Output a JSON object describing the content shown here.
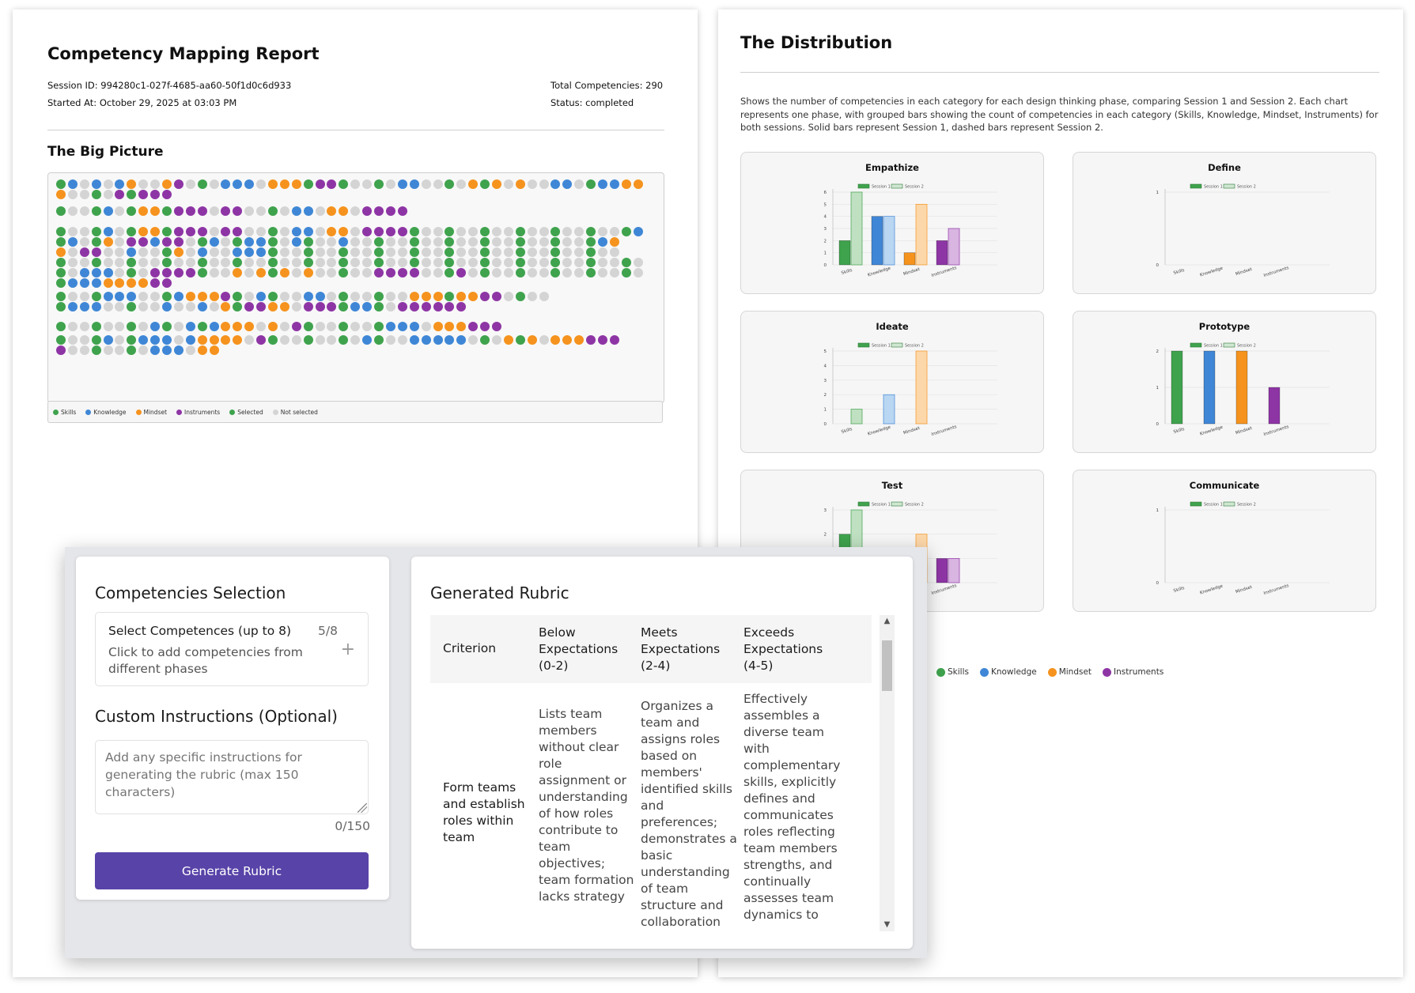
{
  "report": {
    "title": "Competency Mapping Report",
    "session_id": "Session ID: 994280c1-027f-4685-aa60-50f1d0c6d933",
    "started_at": "Started At: October 29, 2025 at 03:03 PM",
    "total": "Total Competencies: 290",
    "status": "Status: completed",
    "big_picture_title": "The Big Picture",
    "legend": [
      "Skills",
      "Knowledge",
      "Mindset",
      "Instruments",
      "Selected",
      "Not selected"
    ]
  },
  "colors": {
    "skills": "#3fa34d",
    "knowledge": "#3f87d6",
    "mindset": "#f5931e",
    "instruments": "#8e35a5",
    "not_selected": "#d4d4d4",
    "primary_button": "#5843a8"
  },
  "dot_rows": [
    "GBGBGBOGGOPGGGBBBGOOOGPPGGGGGBBGGGGOGOGOGGBBGGBBOO",
    "OGGGGPGPPP",
    "GGGGBGGOOGPPPGPPGGGGBBGOOGPPPP",
    "GGGGBGGOOGPPPGPPGGGGBBGOOGPPPPGGGGGGGGGGGGGGGGGGGB",
    "GBGGOGPPBPPGGBGGBBGGBGGGBGGGGGGGGGGGGGGGGGGGGGBO",
    "OGPPGGBGGGOGBGGBBBGGGGGGGGGGGGGGGGGGGGGGGGGGGGGG",
    "GGGGGGGGGGGGGGGGGGGGGGGGGGGGGGGGGGGGGGGGGGGGGGGGGG",
    "GGBBBGGGPPPPGGGOGOGOGOGGGGGPPPPGGGPGGGGGGGGGGGGGGG",
    "GBBBOOOOPP",
    "GGGGBBBGGGBOOOPGGBGGGBBGGGGGGGOOOGOOPPGGGG",
    "GBBBGGGGGBGGBGOGPPOOGPPPGBBGGPPPPPP",
    "GGGGGGGGBGGBGBOOOGOGPGGGGGGGBBBGOOOPPP",
    "GGGGBGGBBBGBOOOOGPGGGGGGGGBGGGBBBBBGGGOGOGOOOPPP",
    "PGGGGGGGBBBGOO"
  ],
  "distribution": {
    "title": "The Distribution",
    "description": "Shows the number of competencies in each category for each design thinking phase, comparing Session 1 and Session 2. Each chart represents one phase, with grouped bars showing the count of competencies in each category (Skills, Knowledge, Mindset, Instruments) for both sessions. Solid bars represent Session 1, dashed bars represent Session 2.",
    "legend": [
      "Skills",
      "Knowledge",
      "Mindset",
      "Instruments"
    ]
  },
  "chart_data": [
    {
      "type": "bar",
      "title": "Empathize",
      "categories": [
        "Skills",
        "Knowledge",
        "Mindset",
        "Instruments"
      ],
      "series": [
        {
          "name": "Session 1",
          "values": [
            2,
            4,
            1,
            2
          ]
        },
        {
          "name": "Session 2",
          "values": [
            6,
            4,
            5,
            3
          ]
        }
      ],
      "ylim": [
        0,
        6
      ]
    },
    {
      "type": "bar",
      "title": "Define",
      "categories": [
        "Skills",
        "Knowledge",
        "Mindset",
        "Instruments"
      ],
      "series": [
        {
          "name": "Session 1",
          "values": [
            0,
            0,
            0,
            0
          ]
        },
        {
          "name": "Session 2",
          "values": [
            0,
            0,
            0,
            0
          ]
        }
      ],
      "ylim": [
        0,
        1
      ]
    },
    {
      "type": "bar",
      "title": "Ideate",
      "categories": [
        "Skills",
        "Knowledge",
        "Mindset",
        "Instruments"
      ],
      "series": [
        {
          "name": "Session 1",
          "values": [
            0,
            0,
            0,
            0
          ]
        },
        {
          "name": "Session 2",
          "values": [
            1,
            2,
            5,
            0
          ]
        }
      ],
      "ylim": [
        0,
        5
      ]
    },
    {
      "type": "bar",
      "title": "Prototype",
      "categories": [
        "Skills",
        "Knowledge",
        "Mindset",
        "Instruments"
      ],
      "series": [
        {
          "name": "Session 1",
          "values": [
            2,
            2,
            2,
            1
          ]
        },
        {
          "name": "Session 2",
          "values": [
            0,
            0,
            0,
            0
          ]
        }
      ],
      "ylim": [
        0,
        2
      ]
    },
    {
      "type": "bar",
      "title": "Test",
      "categories": [
        "Skills",
        "Knowledge",
        "Mindset",
        "Instruments"
      ],
      "series": [
        {
          "name": "Session 1",
          "values": [
            2,
            0,
            0,
            1
          ]
        },
        {
          "name": "Session 2",
          "values": [
            3,
            0,
            2,
            1
          ]
        }
      ],
      "ylim": [
        0,
        3
      ]
    },
    {
      "type": "bar",
      "title": "Communicate",
      "categories": [
        "Skills",
        "Knowledge",
        "Mindset",
        "Instruments"
      ],
      "series": [
        {
          "name": "Session 1",
          "values": [
            0,
            0,
            0,
            0
          ]
        },
        {
          "name": "Session 2",
          "values": [
            0,
            0,
            0,
            0
          ]
        }
      ],
      "ylim": [
        0,
        1
      ]
    }
  ],
  "competencies": {
    "title": "Competencies Selection",
    "select_label": "Select Competences (up to 8)",
    "select_count": "5/8",
    "select_hint": "Click to add competencies from different phases",
    "plus": "+",
    "custom_title": "Custom Instructions (Optional)",
    "custom_placeholder": "Add any specific instructions for generating the rubric (max 150 characters)",
    "custom_count": "0/150",
    "generate_label": "Generate Rubric"
  },
  "rubric": {
    "title": "Generated Rubric",
    "headers": [
      "Criterion",
      "Below Expectations (0-2)",
      "Meets Expectations (2-4)",
      "Exceeds Expectations (4-5)"
    ],
    "rows": [
      {
        "criterion": "Form teams and establish roles within team",
        "below": "Lists team members without clear role assignment or understanding of how roles contribute to team objectives; team formation lacks strategy",
        "meets": "Organizes a team and assigns roles based on members' identified skills and preferences; demonstrates a basic understanding of team structure and collaboration",
        "exceeds": "Effectively assembles a diverse team with complementary skills, explicitly defines and communicates roles reflecting team members strengths, and continually assesses team dynamics to"
      }
    ]
  }
}
